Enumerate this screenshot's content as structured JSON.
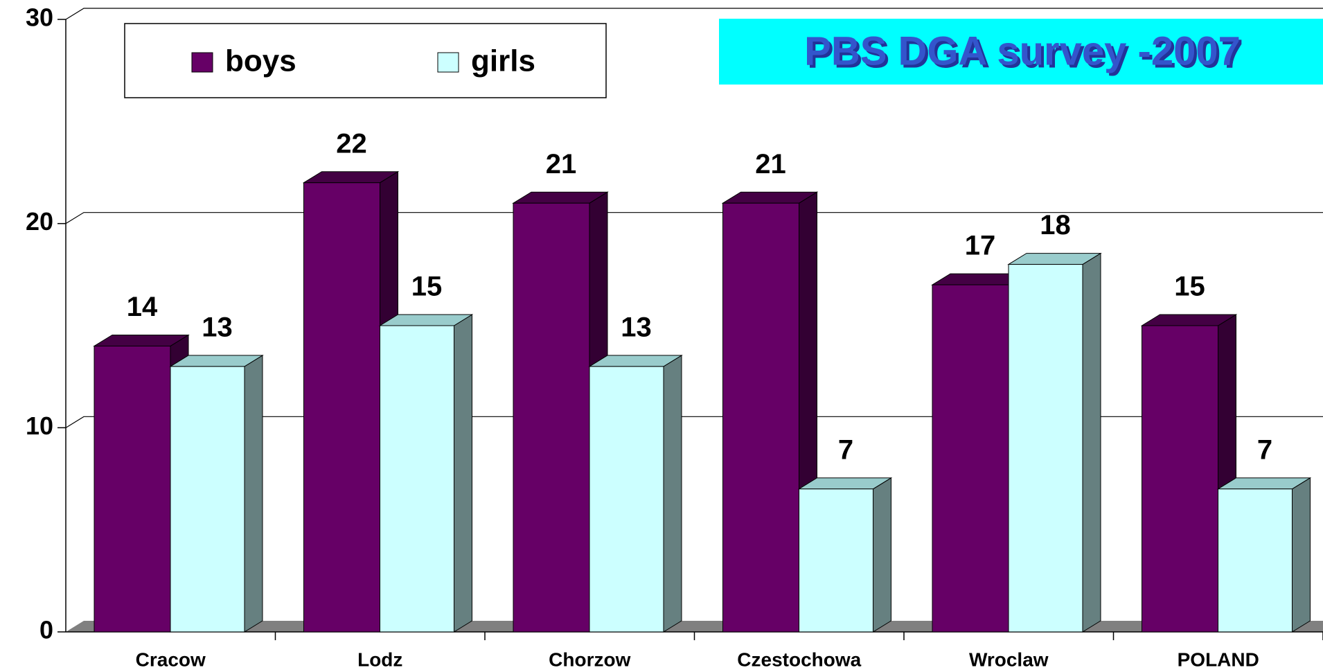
{
  "chart_data": {
    "type": "bar3d",
    "title": "PBS DGA survey -2007",
    "categories": [
      "Cracow",
      "Lodz",
      "Chorzow",
      "Czestochowa",
      "Wroclaw",
      "POLAND"
    ],
    "series": [
      {
        "name": "boys",
        "color": "#660066",
        "values": [
          14,
          22,
          21,
          21,
          17,
          15
        ]
      },
      {
        "name": "girls",
        "color": "#ccffff",
        "values": [
          13,
          15,
          13,
          7,
          18,
          7
        ]
      }
    ],
    "ylim": [
      0,
      30
    ],
    "yticks": [
      0,
      10,
      20,
      30
    ],
    "grid": true
  }
}
